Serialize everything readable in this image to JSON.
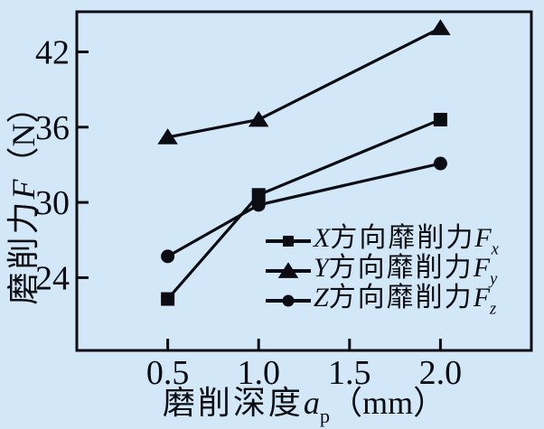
{
  "colors": {
    "background": "#d2e7f7",
    "ink": "#0c0d12"
  },
  "chart_data": {
    "type": "line",
    "title": "",
    "xlabel": "磨削深度ap（mm）",
    "ylabel": "磨削力F（N）",
    "xlabel_parts": {
      "cn": "磨削深度",
      "var": "a",
      "sub": "p",
      "unit": "（mm）"
    },
    "ylabel_parts": {
      "cn": "磨削力",
      "var": "F",
      "unit": "（N）"
    },
    "xlim": [
      0,
      2.5
    ],
    "ylim": [
      18.2,
      45.2
    ],
    "x_ticks": [
      0.5,
      1.0,
      1.5,
      2.0
    ],
    "x_tick_labels": [
      "0.5",
      "1.0",
      "1.5",
      "2.0"
    ],
    "y_ticks": [
      24,
      30,
      36,
      42
    ],
    "y_tick_labels": [
      "24",
      "30",
      "36",
      "42"
    ],
    "grid": false,
    "legend_position": "inside lower right",
    "x": [
      0.5,
      1.0,
      2.0
    ],
    "series": [
      {
        "name": "X方向靡削力Fx",
        "marker": "square",
        "values": [
          22.3,
          30.6,
          36.6
        ]
      },
      {
        "name": "Y方向靡削力Fy",
        "marker": "triangle",
        "values": [
          35.2,
          36.6,
          43.9
        ]
      },
      {
        "name": "Z方向靡削力Fz",
        "marker": "circle",
        "values": [
          25.7,
          29.8,
          33.1
        ]
      }
    ]
  },
  "legend": {
    "items": [
      {
        "marker": "square",
        "letter": "X",
        "cn": "方向靡削力",
        "sym": "F",
        "sub": "x"
      },
      {
        "marker": "triangle",
        "letter": "Y",
        "cn": "方向靡削力",
        "sym": "F",
        "sub": "y"
      },
      {
        "marker": "circle",
        "letter": "Z",
        "cn": "方向靡削力",
        "sym": "F",
        "sub": "z"
      }
    ]
  }
}
